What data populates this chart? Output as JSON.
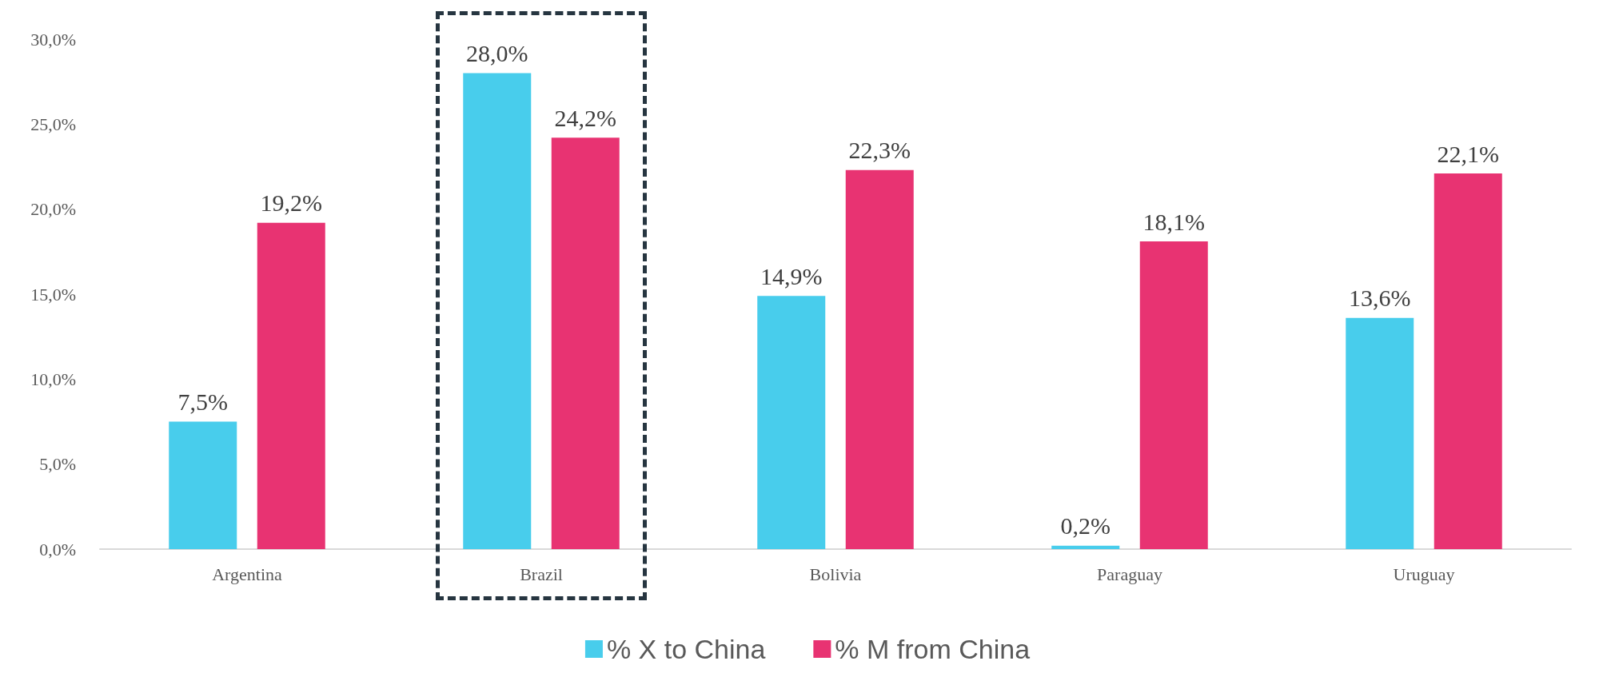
{
  "chart_data": {
    "type": "bar",
    "categories": [
      "Argentina",
      "Brazil",
      "Bolivia",
      "Paraguay",
      "Uruguay"
    ],
    "series": [
      {
        "name": "% X to China",
        "color": "#48cdec",
        "values": [
          7.5,
          28.0,
          14.9,
          0.2,
          13.6
        ],
        "value_labels": [
          "7,5%",
          "28,0%",
          "14,9%",
          "0,2%",
          "13,6%"
        ]
      },
      {
        "name": "% M from China",
        "color": "#e83372",
        "values": [
          19.2,
          24.2,
          22.3,
          18.1,
          22.1
        ],
        "value_labels": [
          "19,2%",
          "24,2%",
          "22,3%",
          "18,1%",
          "22,1%"
        ]
      }
    ],
    "ylim": [
      0,
      30
    ],
    "yticks": [
      {
        "value": 0,
        "label": "0,0%"
      },
      {
        "value": 5,
        "label": "5,0%"
      },
      {
        "value": 10,
        "label": "10,0%"
      },
      {
        "value": 15,
        "label": "15,0%"
      },
      {
        "value": 20,
        "label": "20,0%"
      },
      {
        "value": 25,
        "label": "25,0%"
      },
      {
        "value": 30,
        "label": "30,0%"
      }
    ],
    "grid": false,
    "legend": "bottom"
  }
}
